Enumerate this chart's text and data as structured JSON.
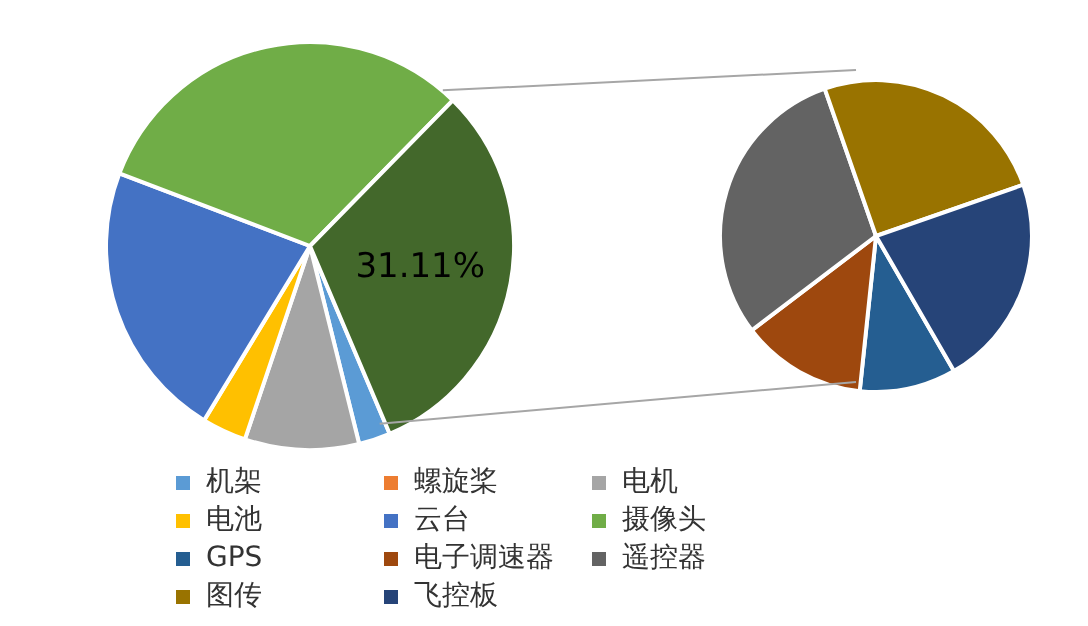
{
  "chart_data": [
    {
      "type": "pie",
      "categories": [
        "机架",
        "螺旋桨",
        "电机",
        "电池",
        "云台",
        "摄像头",
        null
      ],
      "values": [
        2.5,
        null,
        9,
        3.5,
        22,
        31.39,
        31.11
      ],
      "colors": [
        "#5b9bd5",
        "#ed7d31",
        "#a5a5a5",
        "#ffc000",
        "#4472c4",
        "#70ad47",
        "#43682b"
      ],
      "value_labels": [
        null,
        null,
        null,
        null,
        null,
        null,
        "31.11%"
      ],
      "legend": "bottom"
    },
    {
      "type": "pie",
      "categories": [
        "GPS",
        "电子调速器",
        "遥控器",
        "图传",
        "飞控板"
      ],
      "values": [
        10,
        13,
        30,
        25,
        22
      ],
      "colors": [
        "#255e91",
        "#9e480e",
        "#636363",
        "#997300",
        "#264478"
      ],
      "legend": "bottom"
    }
  ]
}
